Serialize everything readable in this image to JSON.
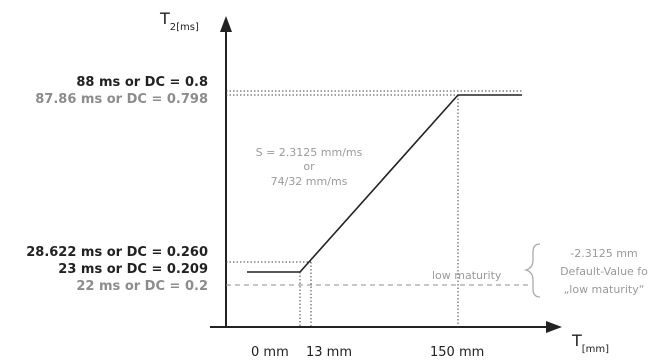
{
  "axes": {
    "y_title_main": "T",
    "y_title_sub": "2[ms]",
    "x_title_main": "T",
    "x_title_sub": "[mm]"
  },
  "y_labels": {
    "l88": "88 ms or DC = 0.8",
    "l8786": "87.86 ms or DC = 0.798",
    "l28622": "28.622 ms or DC = 0.260",
    "l23": "23 ms or DC = 0.209",
    "l22": "22 ms or DC = 0.2"
  },
  "x_labels": {
    "x0": "0 mm",
    "x13": "13 mm",
    "x150": "150 mm"
  },
  "slope_note": {
    "line1": "S = 2.3125 mm/ms",
    "line2": "or",
    "line3": "74/32 mm/ms"
  },
  "low_maturity": "low maturity",
  "side_note": {
    "line1": "-2.3125 mm",
    "line2": "Default-Value fo",
    "line3": "„low maturity“"
  },
  "colors": {
    "dark": "#222222",
    "gray": "#8c8c8c",
    "light": "#9a9a9a"
  }
}
